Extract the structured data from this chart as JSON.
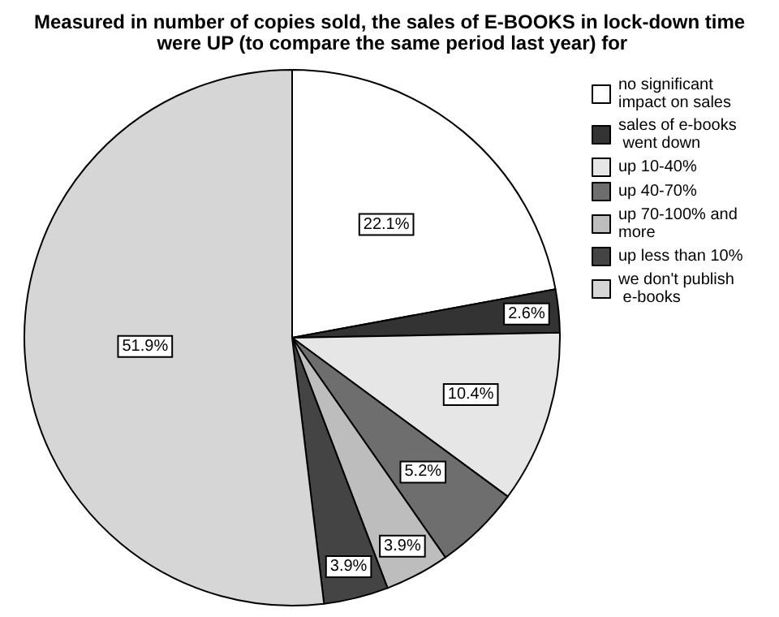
{
  "chart_data": {
    "type": "pie",
    "title": "Measured in number of copies sold, the sales of E-BOOKS in lock-down time were UP (to compare the same period last year) for",
    "categories": [
      "no significant impact on sales",
      "sales of e-books went down",
      "up 10-40%",
      "up 40-70%",
      "up 70-100% and more",
      "up less than 10%",
      "we don't publish e-books"
    ],
    "values": [
      22.1,
      2.6,
      10.4,
      5.2,
      3.9,
      3.9,
      51.9
    ],
    "value_labels": [
      "22.1%",
      "2.6%",
      "10.4%",
      "5.2%",
      "3.9%",
      "3.9%",
      "51.9%"
    ],
    "colors": [
      "#ffffff",
      "#333333",
      "#e6e6e6",
      "#6e6e6e",
      "#bdbdbd",
      "#444444",
      "#d6d6d6"
    ],
    "legend": "top right"
  }
}
